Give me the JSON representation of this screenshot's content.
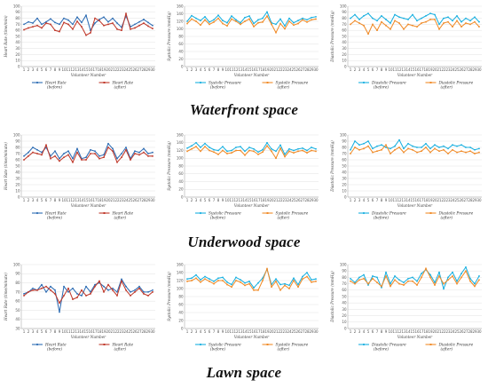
{
  "colors": {
    "before_hr": "#2e6db4",
    "after_hr": "#c0392b",
    "before_bp": "#1ab0e0",
    "after_bp": "#f08c2a",
    "grid": "#d9d9d9",
    "axis": "#9a9a9a"
  },
  "spaces": [
    {
      "title": "Waterfront space"
    },
    {
      "title": "Underwood space"
    },
    {
      "title": "Lawn space"
    }
  ],
  "chart_data": [
    {
      "type": "line",
      "space": "Waterfront space",
      "metric": "hr",
      "ylabel": "Heart Rate (time/min)",
      "xlabel": "Volunteer Number",
      "ylim": [
        0,
        100
      ],
      "yticks": [
        0,
        10,
        20,
        30,
        40,
        50,
        60,
        70,
        80,
        90,
        100
      ],
      "categories": [
        "1",
        "2",
        "3",
        "4",
        "5",
        "6",
        "7",
        "8",
        "9",
        "10",
        "11",
        "12",
        "13",
        "14",
        "15",
        "16",
        "17",
        "18",
        "19",
        "20",
        "21",
        "22",
        "23",
        "24",
        "25",
        "26",
        "27",
        "28",
        "29",
        "30"
      ],
      "series": [
        {
          "name": "Heart Rate (before)",
          "values": [
            70,
            74,
            72,
            80,
            70,
            74,
            79,
            73,
            70,
            80,
            77,
            70,
            82,
            73,
            85,
            60,
            72,
            78,
            82,
            74,
            80,
            72,
            65,
            84,
            66,
            70,
            74,
            78,
            73,
            68
          ]
        },
        {
          "name": "Heart Rate (after)",
          "values": [
            61,
            64,
            66,
            68,
            64,
            72,
            70,
            60,
            58,
            73,
            70,
            62,
            75,
            66,
            52,
            56,
            80,
            76,
            68,
            70,
            72,
            62,
            60,
            88,
            62,
            64,
            68,
            72,
            67,
            63
          ]
        }
      ],
      "legend": "bottom"
    },
    {
      "type": "line",
      "space": "Waterfront space",
      "metric": "sys",
      "ylabel": "Systolic Pressure (mmHg)",
      "xlabel": "Volunteer Number",
      "ylim": [
        0,
        160
      ],
      "yticks": [
        0,
        20,
        40,
        60,
        80,
        100,
        120,
        140,
        160
      ],
      "categories": [
        "1",
        "2",
        "3",
        "4",
        "5",
        "6",
        "7",
        "8",
        "9",
        "10",
        "11",
        "12",
        "13",
        "14",
        "15",
        "16",
        "17",
        "18",
        "19",
        "20",
        "21",
        "22",
        "23",
        "24",
        "25",
        "26",
        "27",
        "28",
        "29",
        "30"
      ],
      "series": [
        {
          "name": "Systolic Pressure (before)",
          "values": [
            120,
            135,
            128,
            122,
            132,
            118,
            124,
            136,
            122,
            116,
            134,
            124,
            116,
            130,
            134,
            114,
            124,
            128,
            145,
            116,
            112,
            126,
            108,
            128,
            116,
            122,
            128,
            124,
            130,
            132
          ]
        },
        {
          "name": "Systolic Pressure (after)",
          "values": [
            114,
            126,
            120,
            110,
            124,
            112,
            118,
            128,
            114,
            108,
            126,
            120,
            112,
            120,
            126,
            106,
            116,
            118,
            134,
            112,
            90,
            114,
            100,
            120,
            110,
            114,
            124,
            118,
            124,
            126
          ]
        }
      ],
      "legend": "bottom"
    },
    {
      "type": "line",
      "space": "Waterfront space",
      "metric": "dia",
      "ylabel": "Diastolic Pressure (mmHg)",
      "xlabel": "Volunteer Number",
      "ylim": [
        0,
        100
      ],
      "yticks": [
        0,
        10,
        20,
        30,
        40,
        50,
        60,
        70,
        80,
        90,
        100
      ],
      "categories": [
        "1",
        "2",
        "3",
        "4",
        "5",
        "6",
        "7",
        "8",
        "9",
        "10",
        "11",
        "12",
        "13",
        "14",
        "15",
        "16",
        "17",
        "18",
        "19",
        "20",
        "21",
        "22",
        "23",
        "24",
        "25",
        "26",
        "27",
        "28",
        "29",
        "30"
      ],
      "series": [
        {
          "name": "Diastolic Pressure (before)",
          "values": [
            80,
            86,
            78,
            84,
            88,
            80,
            76,
            84,
            78,
            72,
            86,
            82,
            80,
            78,
            86,
            76,
            80,
            84,
            88,
            86,
            70,
            80,
            82,
            76,
            84,
            74,
            80,
            76,
            82,
            74
          ]
        },
        {
          "name": "Diastolic Pressure (after)",
          "values": [
            70,
            76,
            72,
            68,
            54,
            70,
            60,
            74,
            68,
            62,
            76,
            72,
            62,
            70,
            68,
            66,
            72,
            74,
            78,
            78,
            62,
            72,
            74,
            66,
            76,
            66,
            72,
            70,
            74,
            66
          ]
        }
      ],
      "legend": "bottom"
    },
    {
      "type": "line",
      "space": "Underwood space",
      "metric": "hr",
      "ylabel": "Heart Rate (time/minute)",
      "xlabel": "Volunteer Number",
      "ylim": [
        0,
        100
      ],
      "yticks": [
        0,
        10,
        20,
        30,
        40,
        50,
        60,
        70,
        80,
        90,
        100
      ],
      "categories": [
        "1",
        "2",
        "3",
        "4",
        "5",
        "6",
        "7",
        "8",
        "9",
        "10",
        "11",
        "12",
        "13",
        "14",
        "15",
        "16",
        "17",
        "18",
        "19",
        "20",
        "21",
        "22",
        "23",
        "24",
        "25",
        "26",
        "27",
        "28",
        "29",
        "30"
      ],
      "series": [
        {
          "name": "Heart Rate (before)",
          "values": [
            66,
            72,
            80,
            76,
            72,
            80,
            66,
            74,
            62,
            70,
            74,
            62,
            78,
            62,
            64,
            76,
            74,
            66,
            68,
            86,
            78,
            62,
            70,
            80,
            62,
            74,
            72,
            78,
            70,
            72
          ]
        },
        {
          "name": "Heart Rate (after)",
          "values": [
            60,
            66,
            72,
            70,
            68,
            84,
            62,
            66,
            58,
            64,
            68,
            56,
            72,
            60,
            60,
            70,
            70,
            62,
            64,
            80,
            74,
            56,
            64,
            76,
            60,
            70,
            68,
            72,
            66,
            66
          ]
        }
      ],
      "legend": "bottom"
    },
    {
      "type": "line",
      "space": "Underwood space",
      "metric": "sys",
      "ylabel": "Systolic Pressure (mmHg)",
      "xlabel": "Volunteer Number",
      "ylim": [
        0,
        160
      ],
      "yticks": [
        0,
        20,
        40,
        60,
        80,
        100,
        120,
        140,
        160
      ],
      "categories": [
        "1",
        "2",
        "3",
        "4",
        "5",
        "6",
        "7",
        "8",
        "9",
        "10",
        "11",
        "12",
        "13",
        "14",
        "15",
        "16",
        "17",
        "18",
        "19",
        "20",
        "21",
        "22",
        "23",
        "24",
        "25",
        "26",
        "27",
        "28",
        "29",
        "30"
      ],
      "series": [
        {
          "name": "Systolic Pressure (before)",
          "values": [
            126,
            132,
            140,
            128,
            138,
            128,
            122,
            120,
            130,
            118,
            120,
            128,
            130,
            118,
            128,
            124,
            116,
            122,
            140,
            124,
            118,
            134,
            110,
            124,
            120,
            124,
            126,
            120,
            128,
            124
          ]
        },
        {
          "name": "Systolic Pressure (after)",
          "values": [
            118,
            124,
            130,
            118,
            130,
            120,
            116,
            110,
            120,
            112,
            114,
            120,
            120,
            108,
            120,
            118,
            110,
            116,
            132,
            118,
            100,
            126,
            104,
            118,
            114,
            118,
            120,
            114,
            120,
            118
          ]
        }
      ],
      "legend": "bottom"
    },
    {
      "type": "line",
      "space": "Underwood space",
      "metric": "dia",
      "ylabel": "Diastolic Pressure (mmHg)",
      "xlabel": "Volunteer Number",
      "ylim": [
        0,
        100
      ],
      "yticks": [
        0,
        10,
        20,
        30,
        40,
        50,
        60,
        70,
        80,
        90,
        100
      ],
      "categories": [
        "1",
        "2",
        "3",
        "4",
        "5",
        "6",
        "7",
        "8",
        "9",
        "10",
        "11",
        "12",
        "13",
        "14",
        "15",
        "16",
        "17",
        "18",
        "19",
        "20",
        "21",
        "22",
        "23",
        "24",
        "25",
        "26",
        "27",
        "28",
        "29",
        "30"
      ],
      "series": [
        {
          "name": "Diastolic Pressure (before)",
          "values": [
            76,
            90,
            84,
            86,
            90,
            78,
            82,
            84,
            80,
            78,
            82,
            92,
            78,
            86,
            82,
            80,
            80,
            86,
            78,
            84,
            80,
            82,
            78,
            84,
            82,
            84,
            80,
            80,
            76,
            78
          ]
        },
        {
          "name": "Diastolic Pressure (after)",
          "values": [
            70,
            80,
            76,
            78,
            82,
            72,
            74,
            76,
            84,
            70,
            76,
            80,
            72,
            78,
            76,
            72,
            74,
            80,
            72,
            78,
            74,
            76,
            70,
            76,
            72,
            74,
            72,
            74,
            70,
            72
          ]
        }
      ],
      "legend": "bottom"
    },
    {
      "type": "line",
      "space": "Lawn space",
      "metric": "hr",
      "ylabel": "Heart Rate (time/minute)",
      "xlabel": "Volunteer Number",
      "ylim": [
        30,
        100
      ],
      "yticks": [
        30,
        40,
        50,
        60,
        70,
        80,
        90,
        100
      ],
      "categories": [
        "1",
        "2",
        "3",
        "4",
        "5",
        "6",
        "7",
        "8",
        "9",
        "10",
        "11",
        "12",
        "13",
        "14",
        "15",
        "16",
        "17",
        "18",
        "19",
        "20",
        "21",
        "22",
        "23",
        "24",
        "25",
        "26",
        "27",
        "28",
        "29",
        "30"
      ],
      "series": [
        {
          "name": "Heart Rate (before)",
          "values": [
            68,
            70,
            74,
            72,
            78,
            70,
            76,
            72,
            48,
            76,
            70,
            74,
            68,
            66,
            76,
            70,
            78,
            80,
            76,
            72,
            74,
            70,
            84,
            76,
            70,
            72,
            76,
            70,
            70,
            72
          ]
        },
        {
          "name": "Heart Rate (after)",
          "values": [
            66,
            70,
            72,
            72,
            74,
            76,
            72,
            68,
            58,
            66,
            74,
            62,
            64,
            72,
            66,
            68,
            76,
            82,
            70,
            78,
            72,
            66,
            82,
            72,
            66,
            70,
            74,
            68,
            66,
            70
          ]
        }
      ],
      "legend": "bottom"
    },
    {
      "type": "line",
      "space": "Lawn space",
      "metric": "sys",
      "ylabel": "Systolic Pressure (mmHg)",
      "xlabel": "Volunteer Number",
      "ylim": [
        0,
        160
      ],
      "yticks": [
        0,
        20,
        40,
        60,
        80,
        100,
        120,
        140,
        160
      ],
      "categories": [
        "1",
        "2",
        "3",
        "4",
        "5",
        "6",
        "7",
        "8",
        "9",
        "10",
        "11",
        "12",
        "13",
        "14",
        "15",
        "16",
        "17",
        "18",
        "19",
        "20",
        "21",
        "22",
        "23",
        "24",
        "25",
        "26",
        "27",
        "28",
        "29",
        "30"
      ],
      "series": [
        {
          "name": "Systolic Pressure (before)",
          "values": [
            124,
            126,
            134,
            122,
            130,
            124,
            118,
            126,
            128,
            116,
            110,
            128,
            122,
            114,
            118,
            102,
            114,
            126,
            148,
            110,
            124,
            110,
            112,
            108,
            126,
            110,
            130,
            140,
            122,
            124
          ]
        },
        {
          "name": "Systolic Pressure (after)",
          "values": [
            118,
            120,
            126,
            116,
            124,
            118,
            112,
            120,
            120,
            110,
            104,
            120,
            116,
            108,
            112,
            96,
            96,
            120,
            150,
            104,
            118,
            96,
            108,
            100,
            120,
            104,
            124,
            130,
            116,
            118
          ]
        }
      ],
      "legend": "bottom"
    },
    {
      "type": "line",
      "space": "Lawn space",
      "metric": "dia",
      "ylabel": "Diastolic Pressure (mmHg)",
      "xlabel": "Volunteer Number",
      "ylim": [
        0,
        100
      ],
      "yticks": [
        0,
        10,
        20,
        30,
        40,
        50,
        60,
        70,
        80,
        90,
        100
      ],
      "categories": [
        "1",
        "2",
        "3",
        "4",
        "5",
        "6",
        "7",
        "8",
        "9",
        "10",
        "11",
        "12",
        "13",
        "14",
        "15",
        "16",
        "17",
        "18",
        "19",
        "20",
        "21",
        "22",
        "23",
        "24",
        "25",
        "26",
        "27",
        "28",
        "29",
        "30"
      ],
      "series": [
        {
          "name": "Diastolic Pressure (before)",
          "values": [
            78,
            72,
            80,
            84,
            68,
            82,
            80,
            64,
            88,
            70,
            82,
            76,
            72,
            78,
            80,
            74,
            86,
            92,
            84,
            72,
            88,
            62,
            80,
            88,
            74,
            86,
            96,
            78,
            70,
            82
          ]
        },
        {
          "name": "Diastolic Pressure (after)",
          "values": [
            74,
            70,
            76,
            78,
            70,
            78,
            72,
            66,
            82,
            66,
            76,
            70,
            68,
            74,
            74,
            68,
            80,
            94,
            80,
            68,
            82,
            70,
            76,
            82,
            70,
            80,
            90,
            74,
            66,
            76
          ]
        }
      ],
      "legend": "bottom"
    }
  ]
}
